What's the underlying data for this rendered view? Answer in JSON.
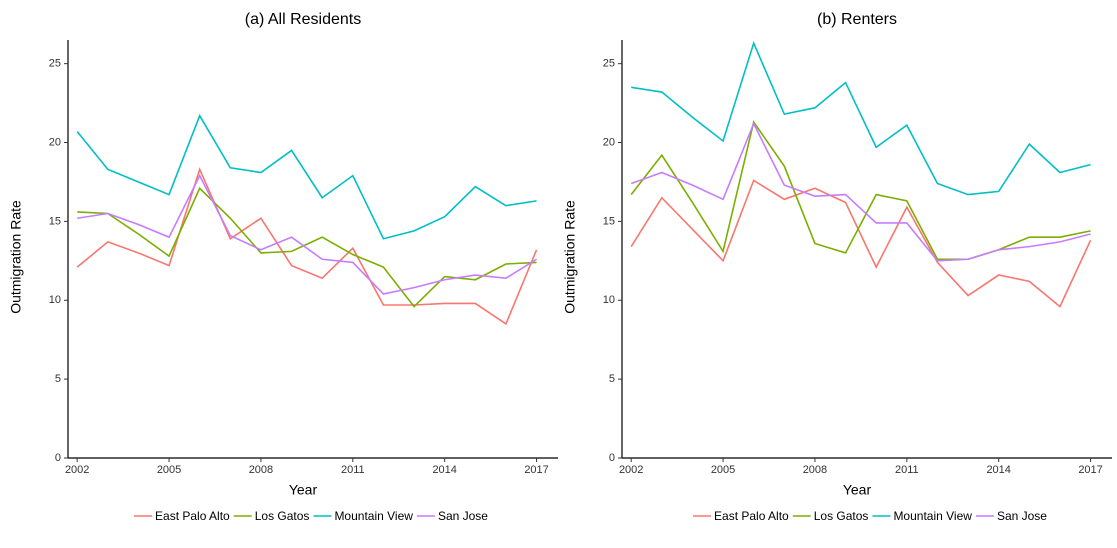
{
  "chart_data": [
    {
      "type": "line",
      "title": "(a) All Residents",
      "x_label": "Year",
      "y_label": "Outmigration Rate",
      "x": [
        2002,
        2003,
        2004,
        2005,
        2006,
        2007,
        2008,
        2009,
        2010,
        2011,
        2012,
        2013,
        2014,
        2015,
        2016,
        2017
      ],
      "xlim": [
        2001.7,
        2017.7
      ],
      "xticks": [
        2002,
        2005,
        2008,
        2011,
        2014,
        2017
      ],
      "ylim": [
        0,
        26.5
      ],
      "yticks": [
        0,
        5,
        10,
        15,
        20,
        25
      ],
      "grid": false,
      "legend": "bottom",
      "series": [
        {
          "name": "East Palo Alto",
          "color": "#F8766D",
          "values": [
            12.1,
            13.7,
            13.0,
            12.2,
            18.3,
            13.9,
            15.2,
            12.2,
            11.4,
            13.3,
            9.7,
            9.7,
            9.8,
            9.8,
            8.5,
            13.2
          ]
        },
        {
          "name": "Los Gatos",
          "color": "#7CAE00",
          "values": [
            15.6,
            15.5,
            14.2,
            12.8,
            17.1,
            15.2,
            13.0,
            13.1,
            14.0,
            12.9,
            12.1,
            9.6,
            11.5,
            11.3,
            12.3,
            12.4
          ]
        },
        {
          "name": "Mountain View",
          "color": "#00BFC4",
          "values": [
            20.7,
            18.3,
            17.5,
            16.7,
            21.7,
            18.4,
            18.1,
            19.5,
            16.5,
            17.9,
            13.9,
            14.4,
            15.3,
            17.2,
            16.0,
            16.3
          ]
        },
        {
          "name": "San Jose",
          "color": "#C77CFF",
          "values": [
            15.2,
            15.5,
            14.8,
            14.0,
            17.9,
            14.1,
            13.2,
            14.0,
            12.6,
            12.4,
            10.4,
            10.8,
            11.3,
            11.6,
            11.4,
            12.6
          ]
        }
      ]
    },
    {
      "type": "line",
      "title": "(b) Renters",
      "x_label": "Year",
      "y_label": "Outmigration Rate",
      "x": [
        2002,
        2003,
        2004,
        2005,
        2006,
        2007,
        2008,
        2009,
        2010,
        2011,
        2012,
        2013,
        2014,
        2015,
        2016,
        2017
      ],
      "xlim": [
        2001.7,
        2017.7
      ],
      "xticks": [
        2002,
        2005,
        2008,
        2011,
        2014,
        2017
      ],
      "ylim": [
        0,
        26.5
      ],
      "yticks": [
        0,
        5,
        10,
        15,
        20,
        25
      ],
      "grid": false,
      "legend": "bottom",
      "series": [
        {
          "name": "East Palo Alto",
          "color": "#F8766D",
          "values": [
            13.4,
            16.5,
            14.5,
            12.5,
            17.6,
            16.4,
            17.1,
            16.2,
            12.1,
            15.9,
            12.4,
            10.3,
            11.6,
            11.2,
            9.6,
            13.8
          ]
        },
        {
          "name": "Los Gatos",
          "color": "#7CAE00",
          "values": [
            16.7,
            19.2,
            16.2,
            13.1,
            21.3,
            18.5,
            13.6,
            13.0,
            16.7,
            16.3,
            12.6,
            12.6,
            13.2,
            14.0,
            14.0,
            14.4
          ]
        },
        {
          "name": "Mountain View",
          "color": "#00BFC4",
          "values": [
            23.5,
            23.2,
            21.6,
            20.1,
            26.3,
            21.8,
            22.2,
            23.8,
            19.7,
            21.1,
            17.4,
            16.7,
            16.9,
            19.9,
            18.1,
            18.6
          ]
        },
        {
          "name": "San Jose",
          "color": "#C77CFF",
          "values": [
            17.4,
            18.1,
            17.3,
            16.4,
            21.2,
            17.3,
            16.6,
            16.7,
            14.9,
            14.9,
            12.5,
            12.6,
            13.2,
            13.4,
            13.7,
            14.2
          ]
        }
      ]
    }
  ]
}
